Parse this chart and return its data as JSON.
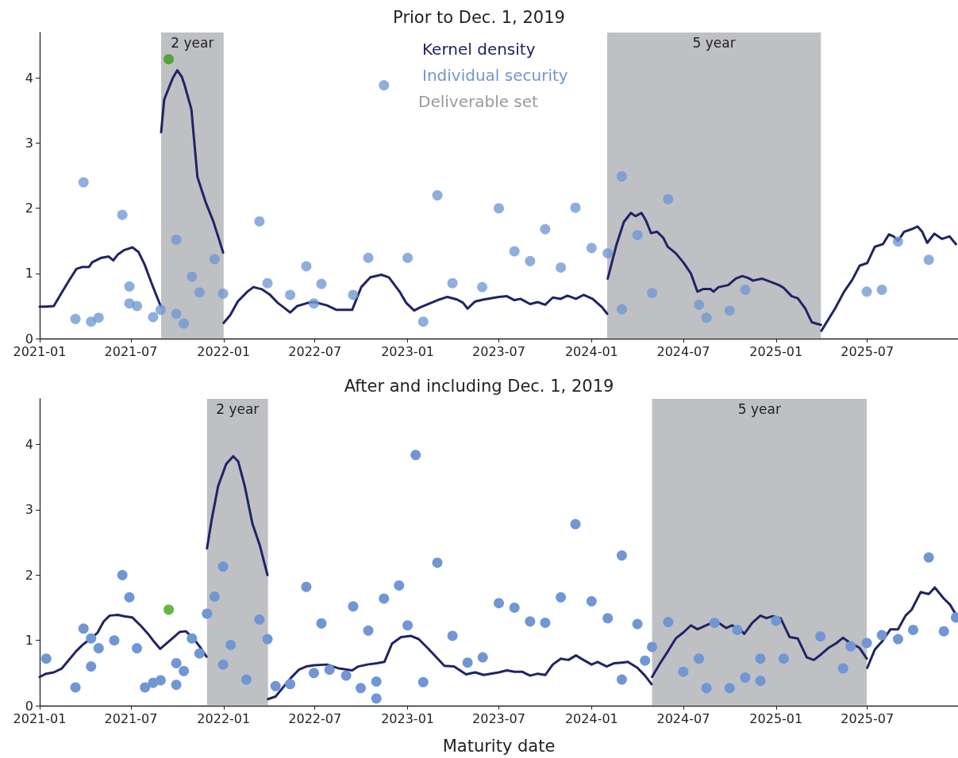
{
  "chart_data": [
    {
      "type": "scatter",
      "title": "Prior to Dec. 1, 2019",
      "xlim": [
        "2021-01-01",
        "2025-12-28"
      ],
      "xticks": [
        "2021-01",
        "2021-07",
        "2022-01",
        "2022-07",
        "2023-01",
        "2023-07",
        "2024-01",
        "2024-07",
        "2025-01",
        "2025-07"
      ],
      "ylim": [
        0,
        4.7
      ],
      "yticks": [
        0,
        1,
        2,
        3,
        4
      ],
      "grid": false,
      "legend": "top",
      "annotations": [
        "Deliverable set"
      ],
      "bands": [
        {
          "axis": "x",
          "from": "2021-08-30",
          "to": "2022-01-01",
          "label": "2 year",
          "color": "#bfc0c4"
        },
        {
          "axis": "x",
          "from": "2024-02-01",
          "to": "2025-03-31",
          "label": "5 year",
          "color": "#bfc0c4"
        }
      ],
      "series": [
        {
          "name": "Kernel density",
          "type": "line",
          "color": "#1f2466",
          "marker": "none",
          "line_style": "solid",
          "x": [
            "2021-01-01",
            "2021-01-14",
            "2021-01-29",
            "2021-02-14",
            "2021-03-01",
            "2021-03-15",
            "2021-03-27",
            "2021-04-09",
            "2021-04-15",
            "2021-05-03",
            "2021-05-18",
            "2021-05-27",
            "2021-06-05",
            "2021-06-18",
            "2021-07-04",
            "2021-07-16",
            "2021-07-28",
            "2021-08-13",
            "2021-08-29",
            "2021-08-29T12:00",
            "2021-08-30",
            "2021-09-05",
            "2021-09-22",
            "2021-10-01",
            "2021-10-10",
            "2021-10-16",
            "2021-10-29",
            "2021-11-10",
            "2021-11-26",
            "2021-12-11",
            "2021-12-23",
            "2021-12-31",
            "2021-12-31T12:00",
            "2022-01-01",
            "2022-01-14",
            "2022-01-29",
            "2022-02-17",
            "2022-03-01",
            "2022-03-17",
            "2022-04-02",
            "2022-04-18",
            "2022-04-30",
            "2022-05-13",
            "2022-05-27",
            "2022-06-18",
            "2022-06-30",
            "2022-07-25",
            "2022-08-13",
            "2022-08-25",
            "2022-09-13",
            "2022-10-01",
            "2022-10-19",
            "2022-11-10",
            "2022-11-25",
            "2022-12-17",
            "2022-12-29",
            "2023-01-14",
            "2023-01-26",
            "2023-02-17",
            "2023-03-05",
            "2023-03-21",
            "2023-04-09",
            "2023-04-21",
            "2023-04-30",
            "2023-05-15",
            "2023-06-01",
            "2023-07-01",
            "2023-07-17",
            "2023-08-01",
            "2023-08-13",
            "2023-09-01",
            "2023-09-16",
            "2023-10-01",
            "2023-10-16",
            "2023-11-01",
            "2023-11-14",
            "2023-12-01",
            "2023-12-16",
            "2024-01-03",
            "2024-01-22",
            "2024-02-01",
            "2024-02-01T12:00",
            "2024-02-02",
            "2024-02-19",
            "2024-03-05",
            "2024-03-19",
            "2024-03-28",
            "2024-04-09",
            "2024-04-18",
            "2024-04-28",
            "2024-05-10",
            "2024-05-22",
            "2024-05-31",
            "2024-06-16",
            "2024-07-01",
            "2024-07-16",
            "2024-07-29",
            "2024-08-09",
            "2024-08-24",
            "2024-08-30",
            "2024-09-09",
            "2024-09-28",
            "2024-10-13",
            "2024-10-26",
            "2024-11-07",
            "2024-11-16",
            "2024-12-04",
            "2024-12-22",
            "2025-01-07",
            "2025-01-16",
            "2025-02-01",
            "2025-02-13",
            "2025-02-28",
            "2025-03-13",
            "2025-03-31",
            "2025-03-31T12:00",
            "2025-04-01",
            "2025-04-28",
            "2025-05-16",
            "2025-06-01",
            "2025-06-16",
            "2025-07-01",
            "2025-07-16",
            "2025-08-01",
            "2025-08-13",
            "2025-08-22",
            "2025-08-31",
            "2025-09-12",
            "2025-09-27",
            "2025-10-09",
            "2025-10-18",
            "2025-10-28",
            "2025-11-11",
            "2025-11-26",
            "2025-12-11",
            "2025-12-24"
          ],
          "values": [
            0.49,
            0.49,
            0.5,
            0.71,
            0.9,
            1.07,
            1.1,
            1.1,
            1.17,
            1.24,
            1.26,
            1.2,
            1.29,
            1.36,
            1.4,
            1.33,
            1.14,
            0.81,
            0.5,
            null,
            3.17,
            3.67,
            4.0,
            4.12,
            4.02,
            3.88,
            3.52,
            2.48,
            2.1,
            1.81,
            1.52,
            1.32,
            null,
            0.24,
            0.36,
            0.57,
            0.72,
            0.79,
            0.76,
            0.68,
            0.55,
            0.48,
            0.4,
            0.5,
            0.55,
            0.56,
            0.51,
            0.44,
            0.44,
            0.44,
            0.79,
            0.94,
            0.98,
            0.94,
            0.71,
            0.55,
            0.43,
            0.48,
            0.55,
            0.6,
            0.64,
            0.6,
            0.55,
            0.46,
            0.57,
            0.6,
            0.64,
            0.65,
            0.59,
            0.61,
            0.53,
            0.56,
            0.52,
            0.63,
            0.61,
            0.66,
            0.61,
            0.67,
            0.61,
            0.48,
            0.38,
            null,
            0.92,
            1.43,
            1.79,
            1.93,
            1.88,
            1.93,
            1.81,
            1.62,
            1.64,
            1.55,
            1.41,
            1.31,
            1.17,
            1.0,
            0.72,
            0.76,
            0.76,
            0.72,
            0.79,
            0.82,
            0.92,
            0.96,
            0.93,
            0.89,
            0.92,
            0.87,
            0.82,
            0.78,
            0.65,
            0.62,
            0.46,
            0.25,
            0.21,
            null,
            0.12,
            0.46,
            0.72,
            0.9,
            1.12,
            1.16,
            1.41,
            1.45,
            1.6,
            1.57,
            1.5,
            1.64,
            1.68,
            1.72,
            1.64,
            1.47,
            1.61,
            1.53,
            1.57,
            1.45
          ]
        },
        {
          "name": "Individual security",
          "type": "scatter",
          "color": "#7097d3",
          "marker": "circle",
          "x": [
            "2021-03-13",
            "2021-03-29",
            "2021-04-13",
            "2021-04-28",
            "2021-06-14",
            "2021-06-28",
            "2021-06-28",
            "2021-07-13",
            "2021-08-14",
            "2021-08-29",
            "2021-09-29",
            "2021-09-29",
            "2021-10-14",
            "2021-10-30",
            "2021-11-14",
            "2021-12-14",
            "2021-12-31",
            "2022-03-13",
            "2022-03-29",
            "2022-05-13",
            "2022-06-14",
            "2022-06-29",
            "2022-07-14",
            "2022-09-15",
            "2022-10-15",
            "2022-11-15",
            "2023-01-01",
            "2023-02-01",
            "2023-03-01",
            "2023-03-31",
            "2023-05-29",
            "2023-07-01",
            "2023-08-01",
            "2023-09-01",
            "2023-10-01",
            "2023-11-01",
            "2023-11-30",
            "2024-01-01",
            "2024-02-02",
            "2024-03-01",
            "2024-03-01",
            "2024-04-01",
            "2024-04-30",
            "2024-06-01",
            "2024-08-01",
            "2024-08-16",
            "2024-10-01",
            "2024-11-01",
            "2025-06-30",
            "2025-07-30",
            "2025-08-31",
            "2025-10-31"
          ],
          "values": [
            0.3,
            2.4,
            0.26,
            0.32,
            1.9,
            0.8,
            0.54,
            0.5,
            0.33,
            0.44,
            1.52,
            0.38,
            0.23,
            0.95,
            0.71,
            1.22,
            0.69,
            1.8,
            0.85,
            0.67,
            1.11,
            0.54,
            0.84,
            0.67,
            1.24,
            3.89,
            1.24,
            0.26,
            2.2,
            0.85,
            0.79,
            2.0,
            1.34,
            1.19,
            1.68,
            1.09,
            2.01,
            1.39,
            1.31,
            2.49,
            0.45,
            1.59,
            0.7,
            2.14,
            0.52,
            0.32,
            0.43,
            0.75,
            0.72,
            0.75,
            1.49,
            1.21
          ]
        },
        {
          "type": "scatter",
          "color": "#52a33a",
          "marker": "circle",
          "x": [
            "2021-09-14"
          ],
          "values": [
            4.29
          ]
        }
      ]
    },
    {
      "type": "scatter",
      "title": "After and including Dec. 1, 2019",
      "xlabel": "Maturity date",
      "xlim": [
        "2021-01-01",
        "2025-12-28"
      ],
      "xticks": [
        "2021-01",
        "2021-07",
        "2022-01",
        "2022-07",
        "2023-01",
        "2023-07",
        "2024-01",
        "2024-07",
        "2025-01",
        "2025-07"
      ],
      "ylim": [
        0,
        4.7
      ],
      "yticks": [
        0,
        1,
        2,
        3,
        4
      ],
      "grid": false,
      "bands": [
        {
          "axis": "x",
          "from": "2021-11-29",
          "to": "2022-03-30",
          "label": "2 year",
          "color": "#bfc0c4"
        },
        {
          "axis": "x",
          "from": "2024-04-30",
          "to": "2025-06-30",
          "label": "5 year",
          "color": "#bfc0c4"
        }
      ],
      "series": [
        {
          "type": "line",
          "color": "#1f2466",
          "marker": "none",
          "line_style": "solid",
          "x": [
            "2021-01-01",
            "2021-01-14",
            "2021-01-29",
            "2021-02-14",
            "2021-03-01",
            "2021-03-15",
            "2021-03-27",
            "2021-04-11",
            "2021-04-26",
            "2021-05-08",
            "2021-05-20",
            "2021-06-05",
            "2021-06-18",
            "2021-07-04",
            "2021-07-21",
            "2021-08-04",
            "2021-08-16",
            "2021-08-28",
            "2021-09-09",
            "2021-09-24",
            "2021-10-06",
            "2021-10-18",
            "2021-11-03",
            "2021-11-15",
            "2021-11-28",
            "2021-11-28T12:00",
            "2021-11-29",
            "2021-12-09",
            "2021-12-21",
            "2022-01-06",
            "2022-01-20",
            "2022-01-30",
            "2022-02-12",
            "2022-02-27",
            "2022-03-14",
            "2022-03-29",
            "2022-03-29T12:00",
            "2022-03-30",
            "2022-04-14",
            "2022-04-30",
            "2022-05-15",
            "2022-05-30",
            "2022-06-14",
            "2022-06-30",
            "2022-07-25",
            "2022-08-06",
            "2022-08-18",
            "2022-09-13",
            "2022-09-25",
            "2022-10-13",
            "2022-11-01",
            "2022-11-16",
            "2022-12-01",
            "2022-12-19",
            "2023-01-07",
            "2023-01-23",
            "2023-02-10",
            "2023-02-26",
            "2023-03-15",
            "2023-04-03",
            "2023-04-15",
            "2023-04-27",
            "2023-05-15",
            "2023-06-01",
            "2023-07-01",
            "2023-07-17",
            "2023-08-01",
            "2023-08-16",
            "2023-09-01",
            "2023-09-16",
            "2023-10-01",
            "2023-10-16",
            "2023-11-01",
            "2023-11-16",
            "2023-12-01",
            "2023-12-16",
            "2024-01-01",
            "2024-01-13",
            "2024-01-31",
            "2024-02-15",
            "2024-03-01",
            "2024-03-13",
            "2024-04-01",
            "2024-04-16",
            "2024-04-29",
            "2024-04-29T12:00",
            "2024-04-30",
            "2024-05-16",
            "2024-06-01",
            "2024-06-16",
            "2024-07-01",
            "2024-07-16",
            "2024-07-29",
            "2024-08-12",
            "2024-08-27",
            "2024-09-09",
            "2024-09-24",
            "2024-10-06",
            "2024-10-21",
            "2024-10-30",
            "2024-11-15",
            "2024-12-01",
            "2024-12-13",
            "2024-12-25",
            "2025-01-10",
            "2025-01-28",
            "2025-02-13",
            "2025-03-03",
            "2025-03-17",
            "2025-04-01",
            "2025-04-16",
            "2025-05-01",
            "2025-05-14",
            "2025-05-28",
            "2025-06-15",
            "2025-06-30",
            "2025-06-30T12:00",
            "2025-07-01",
            "2025-07-16",
            "2025-08-01",
            "2025-08-16",
            "2025-08-31",
            "2025-09-15",
            "2025-09-27",
            "2025-10-15",
            "2025-10-31",
            "2025-11-12",
            "2025-11-30",
            "2025-12-12",
            "2025-12-25"
          ],
          "values": [
            0.44,
            0.49,
            0.51,
            0.57,
            0.71,
            0.84,
            0.93,
            1.02,
            1.12,
            1.29,
            1.38,
            1.39,
            1.37,
            1.35,
            1.22,
            1.1,
            0.98,
            0.87,
            0.95,
            1.05,
            1.13,
            1.14,
            1.02,
            0.9,
            0.75,
            null,
            2.41,
            2.88,
            3.36,
            3.7,
            3.82,
            3.74,
            3.36,
            2.79,
            2.45,
            2.0,
            null,
            0.1,
            0.14,
            0.29,
            0.43,
            0.55,
            0.6,
            0.62,
            0.63,
            0.6,
            0.57,
            0.54,
            0.6,
            0.63,
            0.65,
            0.67,
            0.95,
            1.05,
            1.07,
            1.02,
            0.88,
            0.75,
            0.61,
            0.6,
            0.54,
            0.48,
            0.51,
            0.47,
            0.51,
            0.54,
            0.52,
            0.52,
            0.46,
            0.49,
            0.47,
            0.63,
            0.72,
            0.7,
            0.77,
            0.7,
            0.63,
            0.67,
            0.6,
            0.65,
            0.66,
            0.67,
            0.58,
            0.46,
            0.33,
            null,
            0.44,
            0.65,
            0.84,
            1.03,
            1.12,
            1.23,
            1.17,
            1.22,
            1.27,
            1.27,
            1.19,
            1.23,
            1.17,
            1.1,
            1.27,
            1.38,
            1.34,
            1.37,
            1.34,
            1.05,
            1.03,
            0.74,
            0.7,
            0.79,
            0.89,
            0.96,
            1.04,
            0.96,
            0.89,
            0.72,
            null,
            0.58,
            0.86,
            1.0,
            1.17,
            1.17,
            1.38,
            1.47,
            1.74,
            1.71,
            1.81,
            1.64,
            1.55,
            1.38
          ]
        },
        {
          "type": "scatter",
          "color": "#7097d3",
          "marker": "circle",
          "x": [
            "2021-01-14",
            "2021-03-13",
            "2021-03-29",
            "2021-04-13",
            "2021-04-13",
            "2021-04-28",
            "2021-05-29",
            "2021-06-14",
            "2021-06-28",
            "2021-07-13",
            "2021-07-29",
            "2021-08-14",
            "2021-08-29",
            "2021-09-29",
            "2021-09-29",
            "2021-10-14",
            "2021-10-30",
            "2021-11-14",
            "2021-11-29",
            "2021-12-14",
            "2021-12-31",
            "2021-12-31",
            "2022-01-15",
            "2022-02-15",
            "2022-03-13",
            "2022-03-29",
            "2022-04-14",
            "2022-05-13",
            "2022-06-14",
            "2022-06-29",
            "2022-07-14",
            "2022-07-30",
            "2022-09-01",
            "2022-09-15",
            "2022-09-30",
            "2022-10-15",
            "2022-10-31",
            "2022-10-31",
            "2022-11-15",
            "2022-12-15",
            "2023-01-01",
            "2023-01-17",
            "2023-02-01",
            "2023-03-01",
            "2023-03-31",
            "2023-04-30",
            "2023-05-30",
            "2023-07-01",
            "2023-08-01",
            "2023-09-01",
            "2023-10-01",
            "2023-11-01",
            "2023-11-30",
            "2024-01-01",
            "2024-02-02",
            "2024-03-01",
            "2024-03-01",
            "2024-04-01",
            "2024-04-16",
            "2024-04-30",
            "2024-06-01",
            "2024-07-01",
            "2024-08-01",
            "2024-08-16",
            "2024-09-01",
            "2024-10-01",
            "2024-10-16",
            "2024-11-01",
            "2024-12-01",
            "2024-12-01",
            "2025-01-01",
            "2025-01-16",
            "2025-03-30",
            "2025-05-14",
            "2025-05-29",
            "2025-06-30",
            "2025-07-30",
            "2025-08-31",
            "2025-09-30",
            "2025-10-31",
            "2025-11-30",
            "2025-12-24"
          ],
          "values": [
            0.72,
            0.28,
            1.18,
            1.03,
            0.6,
            0.88,
            1.0,
            2.0,
            1.66,
            0.88,
            0.28,
            0.35,
            0.39,
            0.65,
            0.32,
            0.53,
            1.03,
            0.8,
            1.41,
            1.67,
            2.13,
            0.63,
            0.93,
            0.4,
            1.32,
            1.02,
            0.3,
            0.33,
            1.82,
            0.5,
            1.26,
            0.55,
            0.46,
            1.52,
            0.27,
            1.15,
            0.37,
            0.11,
            1.64,
            1.84,
            1.23,
            3.84,
            0.36,
            2.19,
            1.07,
            0.66,
            0.74,
            1.57,
            1.5,
            1.29,
            1.27,
            1.66,
            2.78,
            1.6,
            1.34,
            2.3,
            0.4,
            1.25,
            0.69,
            0.9,
            1.28,
            0.52,
            0.72,
            0.27,
            1.27,
            0.27,
            1.16,
            0.43,
            0.72,
            0.38,
            1.3,
            0.72,
            1.06,
            0.57,
            0.91,
            0.96,
            1.08,
            1.02,
            1.16,
            2.27,
            1.14,
            1.35
          ]
        },
        {
          "type": "scatter",
          "color": "#62b843",
          "marker": "circle",
          "x": [
            "2021-09-14"
          ],
          "values": [
            1.47
          ]
        }
      ]
    }
  ]
}
